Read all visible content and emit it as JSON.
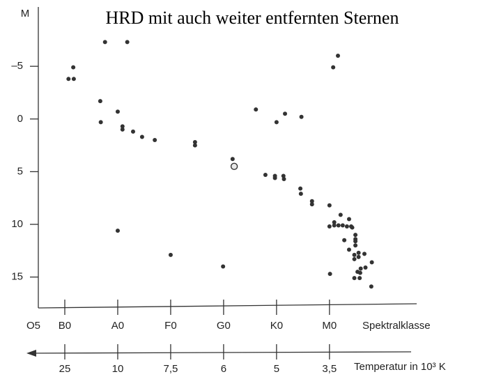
{
  "chart_data": {
    "type": "scatter",
    "title": "HRD  mit auch weiter entfernten Sternen",
    "y_label": "M",
    "x_label": "Spektralklasse",
    "x2_label": "Temperatur in 10³ K",
    "y_inverted": true,
    "xlim": [
      0.5,
      7.7
    ],
    "ylim": [
      -10.3,
      17.8
    ],
    "yticks": [
      {
        "value": -5,
        "label": "–5"
      },
      0,
      5,
      10,
      15
    ],
    "xticks": [
      {
        "value": 0.5,
        "label": "O5"
      },
      {
        "value": 1,
        "label": "B0"
      },
      {
        "value": 2,
        "label": "A0"
      },
      {
        "value": 3,
        "label": "F0"
      },
      {
        "value": 4,
        "label": "G0"
      },
      {
        "value": 5,
        "label": "K0"
      },
      {
        "value": 6,
        "label": "M0"
      }
    ],
    "x2ticks": [
      {
        "value": 1,
        "label": "25"
      },
      {
        "value": 2,
        "label": "10"
      },
      {
        "value": 3,
        "label": "7,5"
      },
      {
        "value": 4,
        "label": "6"
      },
      {
        "value": 5,
        "label": "5"
      },
      {
        "value": 6,
        "label": "3,5"
      }
    ],
    "series": [
      {
        "color": "#333333",
        "filled": true,
        "x": [
          1.07,
          1.17,
          1.16,
          1.76,
          2.18,
          1.67,
          1.68,
          2.0,
          2.09,
          2.09,
          2.29,
          2.46,
          2.7,
          3.46,
          3.46,
          4.17,
          2.0,
          3.0,
          3.99,
          4.61,
          5.0,
          5.16,
          5.47,
          4.79,
          4.97,
          4.97,
          5.13,
          5.14,
          5.45,
          5.46,
          5.67,
          5.67,
          6.0,
          6.07,
          6.16,
          6.0,
          6.09,
          6.09,
          6.17,
          6.25,
          6.21,
          6.33,
          6.37,
          6.41,
          6.43,
          6.28,
          6.49,
          6.49,
          6.49,
          6.37,
          6.49,
          6.47,
          6.47,
          6.55,
          6.55,
          6.66,
          6.59,
          6.53,
          6.58,
          6.68,
          6.8,
          6.47,
          6.57,
          6.01,
          6.79
        ],
        "values": [
          -3.8,
          -3.8,
          -4.9,
          -7.3,
          -7.3,
          -1.7,
          0.3,
          -0.7,
          0.7,
          1.0,
          1.2,
          1.7,
          2.0,
          2.2,
          2.5,
          3.8,
          10.6,
          12.9,
          14.0,
          -0.9,
          0.3,
          -0.5,
          -0.2,
          5.3,
          5.4,
          5.6,
          5.4,
          5.7,
          6.6,
          7.1,
          7.8,
          8.1,
          8.2,
          -4.9,
          -6.0,
          10.2,
          9.8,
          10.1,
          10.1,
          10.1,
          9.1,
          10.2,
          9.5,
          10.2,
          10.3,
          11.5,
          11.0,
          11.4,
          11.6,
          12.4,
          12.0,
          12.9,
          13.3,
          12.7,
          13.1,
          12.8,
          14.2,
          14.5,
          14.6,
          14.1,
          13.6,
          15.1,
          15.1,
          14.7,
          15.9
        ]
      },
      {
        "color": "#333333",
        "filled": false,
        "x": [
          4.2
        ],
        "values": [
          4.5
        ]
      }
    ]
  }
}
